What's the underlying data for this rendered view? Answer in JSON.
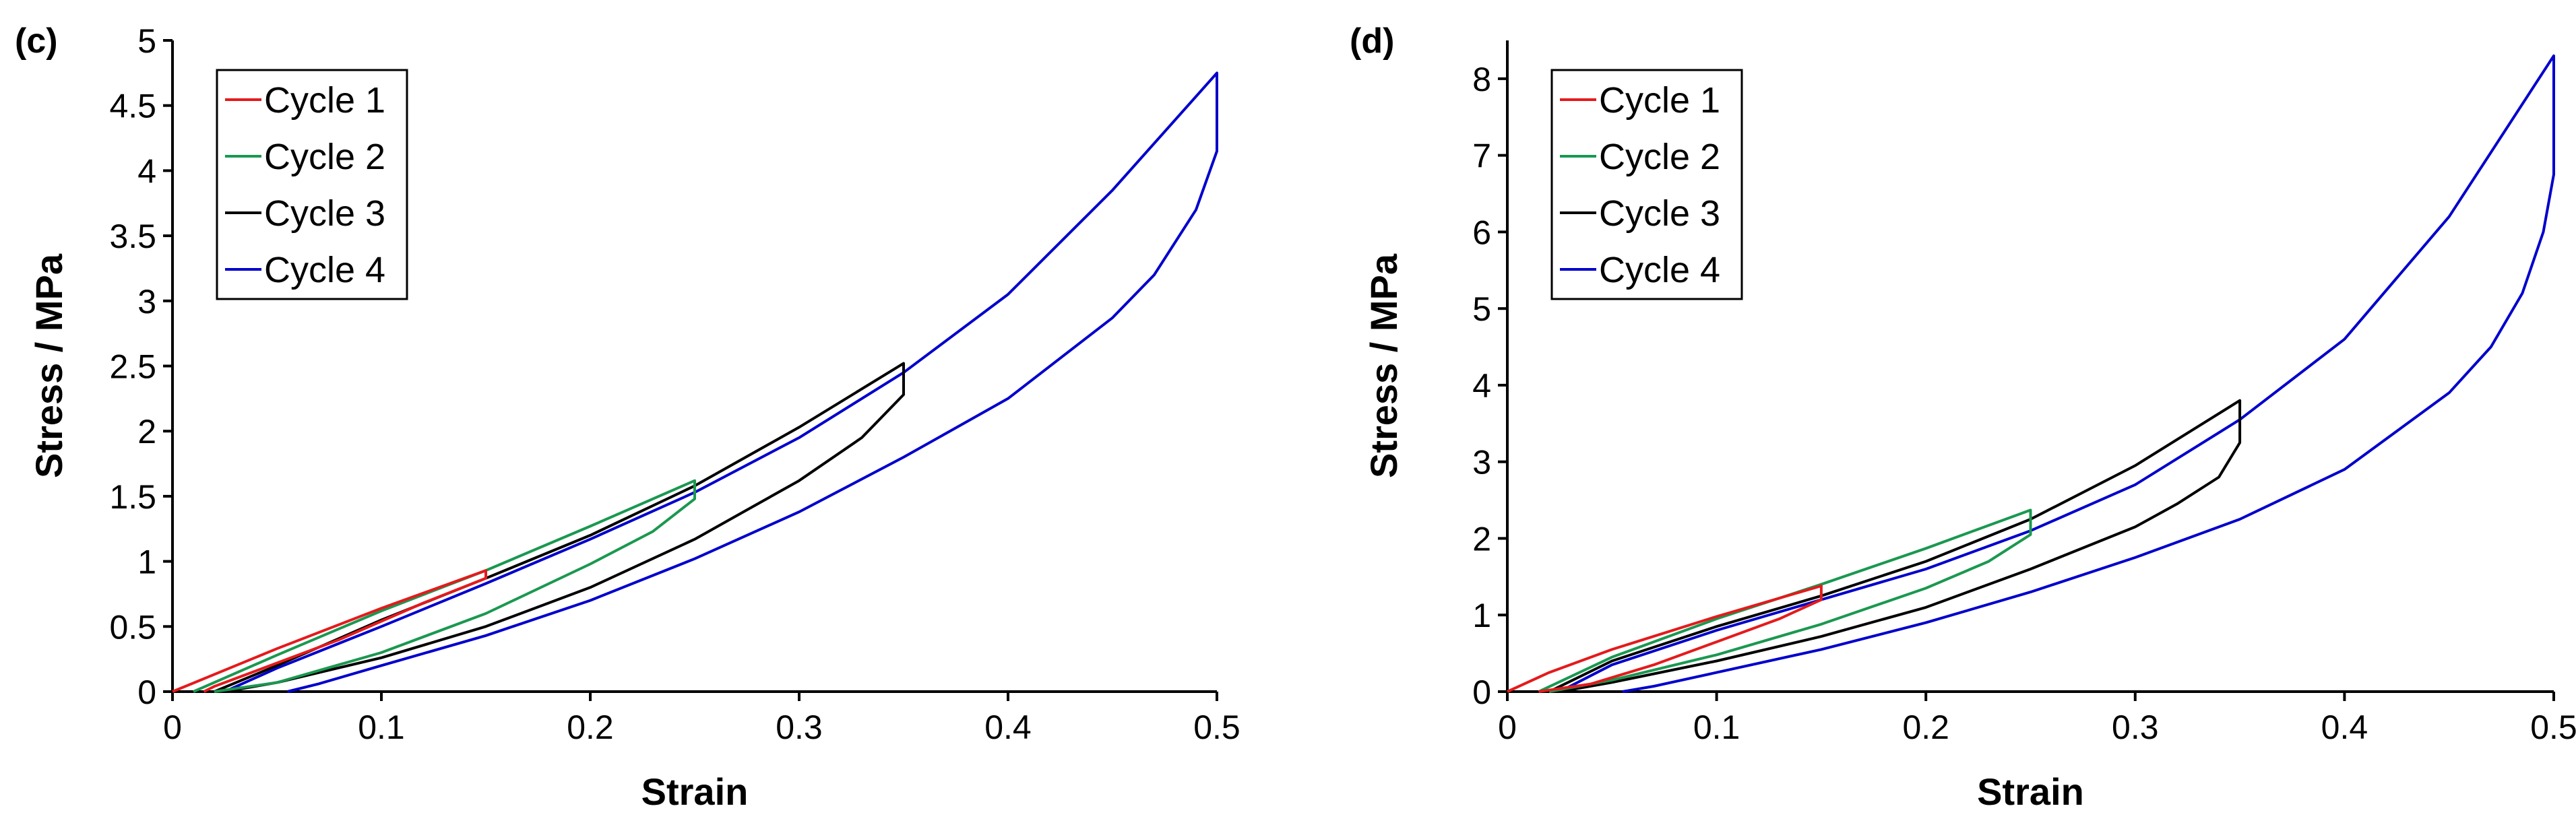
{
  "chart_data": [
    {
      "panel": "(c)",
      "type": "line",
      "xlabel": "Strain",
      "ylabel": "Stress / MPa",
      "xlim": [
        0,
        0.5
      ],
      "ylim": [
        0,
        5
      ],
      "xticks": [
        0,
        0.1,
        0.2,
        0.3,
        0.4,
        0.5
      ],
      "xtick_labels": [
        "0",
        "0.1",
        "0.2",
        "0.3",
        "0.4",
        "0.5"
      ],
      "yticks": [
        0,
        0.5,
        1,
        1.5,
        2,
        2.5,
        3,
        3.5,
        4,
        4.5,
        5
      ],
      "ytick_labels": [
        "0",
        "0.5",
        "1",
        "1.5",
        "2",
        "2.5",
        "3",
        "3.5",
        "4",
        "4.5",
        "5"
      ],
      "legend_position": "top-left",
      "series": [
        {
          "name": "Cycle 1",
          "color": "#e41a1c",
          "loading": [
            [
              0,
              0
            ],
            [
              0.05,
              0.33
            ],
            [
              0.1,
              0.64
            ],
            [
              0.15,
              0.93
            ]
          ],
          "drop_to": 0.87,
          "unloading": [
            [
              0.15,
              0.87
            ],
            [
              0.12,
              0.68
            ],
            [
              0.08,
              0.4
            ],
            [
              0.04,
              0.16
            ],
            [
              0.02,
              0.04
            ],
            [
              0.015,
              0
            ]
          ]
        },
        {
          "name": "Cycle 2",
          "color": "#1a9850",
          "loading": [
            [
              0.01,
              0
            ],
            [
              0.05,
              0.28
            ],
            [
              0.1,
              0.62
            ],
            [
              0.15,
              0.93
            ],
            [
              0.2,
              1.27
            ],
            [
              0.25,
              1.62
            ]
          ],
          "drop_to": 1.48,
          "unloading": [
            [
              0.25,
              1.48
            ],
            [
              0.23,
              1.23
            ],
            [
              0.2,
              0.98
            ],
            [
              0.15,
              0.6
            ],
            [
              0.1,
              0.3
            ],
            [
              0.05,
              0.07
            ],
            [
              0.02,
              0
            ]
          ]
        },
        {
          "name": "Cycle 3",
          "color": "#000000",
          "loading": [
            [
              0.02,
              0
            ],
            [
              0.05,
              0.2
            ],
            [
              0.1,
              0.55
            ],
            [
              0.15,
              0.87
            ],
            [
              0.2,
              1.2
            ],
            [
              0.25,
              1.58
            ],
            [
              0.3,
              2.03
            ],
            [
              0.35,
              2.52
            ]
          ],
          "drop_to": 2.28,
          "unloading": [
            [
              0.35,
              2.28
            ],
            [
              0.33,
              1.95
            ],
            [
              0.3,
              1.62
            ],
            [
              0.25,
              1.17
            ],
            [
              0.2,
              0.8
            ],
            [
              0.15,
              0.5
            ],
            [
              0.1,
              0.26
            ],
            [
              0.05,
              0.07
            ],
            [
              0.025,
              0
            ]
          ]
        },
        {
          "name": "Cycle 4",
          "color": "#0000cc",
          "loading": [
            [
              0.025,
              0
            ],
            [
              0.05,
              0.18
            ],
            [
              0.1,
              0.5
            ],
            [
              0.15,
              0.83
            ],
            [
              0.2,
              1.17
            ],
            [
              0.25,
              1.53
            ],
            [
              0.3,
              1.95
            ],
            [
              0.35,
              2.45
            ],
            [
              0.4,
              3.05
            ],
            [
              0.45,
              3.85
            ],
            [
              0.5,
              4.75
            ]
          ],
          "drop_to": 4.15,
          "unloading": [
            [
              0.5,
              4.15
            ],
            [
              0.49,
              3.7
            ],
            [
              0.47,
              3.2
            ],
            [
              0.45,
              2.87
            ],
            [
              0.4,
              2.25
            ],
            [
              0.35,
              1.8
            ],
            [
              0.3,
              1.38
            ],
            [
              0.25,
              1.02
            ],
            [
              0.2,
              0.7
            ],
            [
              0.15,
              0.43
            ],
            [
              0.1,
              0.2
            ],
            [
              0.07,
              0.06
            ],
            [
              0.055,
              0
            ]
          ]
        }
      ]
    },
    {
      "panel": "(d)",
      "type": "line",
      "xlabel": "Strain",
      "ylabel": "Stress / MPa",
      "xlim": [
        0,
        0.5
      ],
      "ylim": [
        0,
        8.5
      ],
      "xticks": [
        0,
        0.1,
        0.2,
        0.3,
        0.4,
        0.5
      ],
      "xtick_labels": [
        "0",
        "0.1",
        "0.2",
        "0.3",
        "0.4",
        "0.5"
      ],
      "yticks": [
        0,
        1,
        2,
        3,
        4,
        5,
        6,
        7,
        8
      ],
      "ytick_labels": [
        "0",
        "1",
        "2",
        "3",
        "4",
        "5",
        "6",
        "7",
        "8"
      ],
      "legend_position": "top-left",
      "series": [
        {
          "name": "Cycle 1",
          "color": "#e41a1c",
          "loading": [
            [
              0,
              0
            ],
            [
              0.02,
              0.25
            ],
            [
              0.05,
              0.55
            ],
            [
              0.1,
              0.98
            ],
            [
              0.15,
              1.38
            ]
          ],
          "drop_to": 1.2,
          "unloading": [
            [
              0.15,
              1.2
            ],
            [
              0.13,
              0.95
            ],
            [
              0.1,
              0.65
            ],
            [
              0.07,
              0.35
            ],
            [
              0.04,
              0.1
            ],
            [
              0.02,
              0.02
            ],
            [
              0.015,
              0
            ]
          ]
        },
        {
          "name": "Cycle 2",
          "color": "#1a9850",
          "loading": [
            [
              0.015,
              0
            ],
            [
              0.05,
              0.45
            ],
            [
              0.1,
              0.95
            ],
            [
              0.15,
              1.4
            ],
            [
              0.2,
              1.87
            ],
            [
              0.25,
              2.37
            ]
          ],
          "drop_to": 2.05,
          "unloading": [
            [
              0.25,
              2.05
            ],
            [
              0.23,
              1.7
            ],
            [
              0.2,
              1.35
            ],
            [
              0.15,
              0.88
            ],
            [
              0.1,
              0.48
            ],
            [
              0.05,
              0.15
            ],
            [
              0.02,
              0
            ]
          ]
        },
        {
          "name": "Cycle 3",
          "color": "#000000",
          "loading": [
            [
              0.02,
              0
            ],
            [
              0.05,
              0.4
            ],
            [
              0.1,
              0.85
            ],
            [
              0.15,
              1.25
            ],
            [
              0.2,
              1.7
            ],
            [
              0.25,
              2.25
            ],
            [
              0.3,
              2.95
            ],
            [
              0.35,
              3.8
            ]
          ],
          "drop_to": 3.25,
          "unloading": [
            [
              0.35,
              3.25
            ],
            [
              0.34,
              2.8
            ],
            [
              0.32,
              2.45
            ],
            [
              0.3,
              2.15
            ],
            [
              0.25,
              1.6
            ],
            [
              0.2,
              1.1
            ],
            [
              0.15,
              0.72
            ],
            [
              0.1,
              0.4
            ],
            [
              0.05,
              0.12
            ],
            [
              0.025,
              0
            ]
          ]
        },
        {
          "name": "Cycle 4",
          "color": "#0000cc",
          "loading": [
            [
              0.025,
              0
            ],
            [
              0.05,
              0.35
            ],
            [
              0.1,
              0.8
            ],
            [
              0.15,
              1.2
            ],
            [
              0.2,
              1.6
            ],
            [
              0.25,
              2.1
            ],
            [
              0.3,
              2.7
            ],
            [
              0.35,
              3.55
            ],
            [
              0.4,
              4.6
            ],
            [
              0.45,
              6.2
            ],
            [
              0.5,
              8.3
            ]
          ],
          "drop_to": 6.75,
          "unloading": [
            [
              0.5,
              6.75
            ],
            [
              0.495,
              6.0
            ],
            [
              0.485,
              5.2
            ],
            [
              0.47,
              4.5
            ],
            [
              0.45,
              3.9
            ],
            [
              0.4,
              2.9
            ],
            [
              0.35,
              2.25
            ],
            [
              0.3,
              1.75
            ],
            [
              0.25,
              1.3
            ],
            [
              0.2,
              0.9
            ],
            [
              0.15,
              0.55
            ],
            [
              0.1,
              0.25
            ],
            [
              0.07,
              0.07
            ],
            [
              0.055,
              0
            ]
          ]
        }
      ]
    }
  ]
}
